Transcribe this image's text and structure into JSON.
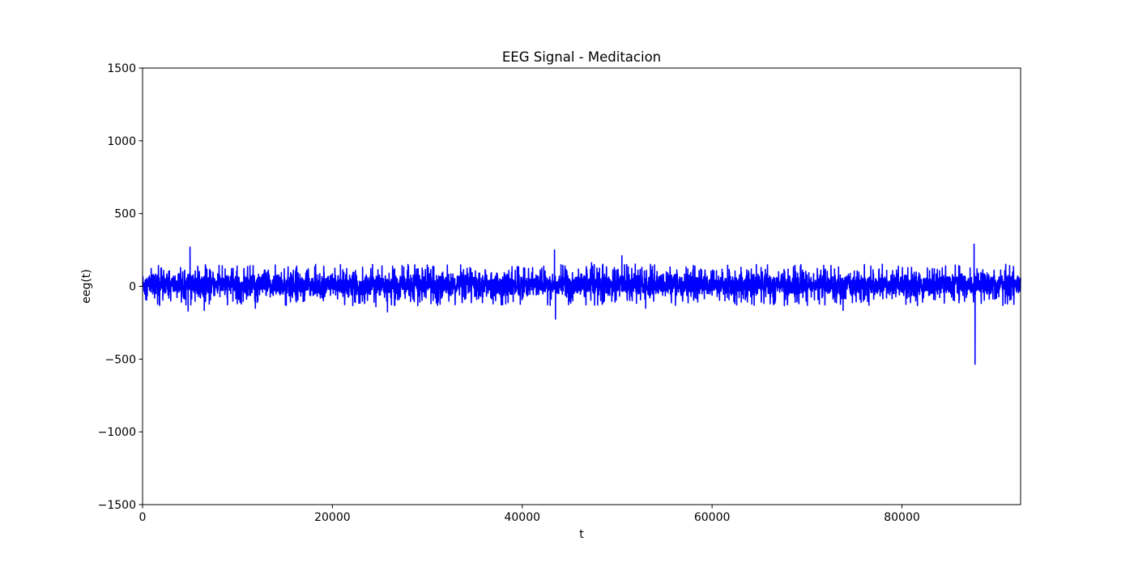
{
  "chart_data": {
    "type": "line",
    "title": "EEG Signal - Meditacion",
    "xlabel": "t",
    "ylabel": "eeg(t)",
    "xlim": [
      0,
      92500
    ],
    "ylim": [
      -1500,
      1500
    ],
    "xticks": [
      0,
      20000,
      40000,
      60000,
      80000
    ],
    "xtick_labels": [
      "0",
      "20000",
      "40000",
      "60000",
      "80000"
    ],
    "yticks": [
      -1500,
      -1000,
      -500,
      0,
      500,
      1000,
      1500
    ],
    "ytick_labels": [
      "−1500",
      "−1000",
      "−500",
      "0",
      "500",
      "1000",
      "1500"
    ],
    "grid": false,
    "series": [
      {
        "color": "#0000ff",
        "baseline_mean": 10,
        "typical_band": [
          -70,
          120
        ],
        "n_samples_approx": 92500,
        "notable_extremes": [
          {
            "x": 5000,
            "y": 270
          },
          {
            "x": 4800,
            "y": -170
          },
          {
            "x": 6500,
            "y": -165
          },
          {
            "x": 25800,
            "y": -175
          },
          {
            "x": 43400,
            "y": 250
          },
          {
            "x": 43500,
            "y": -225
          },
          {
            "x": 50500,
            "y": 210
          },
          {
            "x": 53000,
            "y": -150
          },
          {
            "x": 73800,
            "y": -165
          },
          {
            "x": 87600,
            "y": 290
          },
          {
            "x": 87700,
            "y": -535
          }
        ]
      }
    ]
  }
}
